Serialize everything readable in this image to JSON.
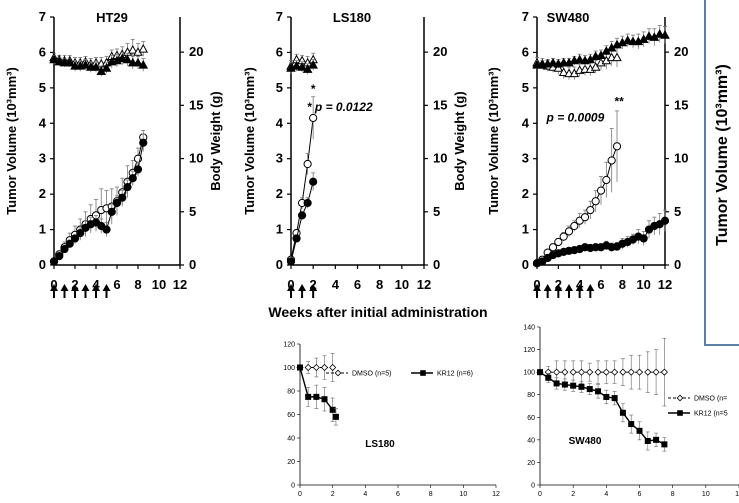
{
  "colors": {
    "axis": "#000000",
    "frame": "#5b7fa6",
    "text": "#000000"
  },
  "common": {
    "shared_xlabel": "Weeks  after initial administration",
    "right_panel_ylabel": "Tumor Volume (10³mm³)"
  },
  "chart_data": [
    {
      "id": "ht29",
      "type": "line",
      "title": "HT29",
      "xlabel": "",
      "ylabel": "Tumor Volume (10³mm³)",
      "y2label": "Body Weight (g)",
      "xlim": [
        0,
        12
      ],
      "xticks": [
        0,
        2,
        4,
        6,
        8,
        10,
        12
      ],
      "ylim": [
        0,
        7
      ],
      "yticks": [
        0,
        1,
        2,
        3,
        4,
        5,
        6,
        7
      ],
      "y2lim": [
        0,
        23.3
      ],
      "y2ticks": [
        0,
        5,
        10,
        15,
        20
      ],
      "dosing_weeks": [
        0,
        1,
        2,
        3,
        4,
        5
      ],
      "series": [
        {
          "marker": "open-circle",
          "axis": "y",
          "x": [
            0,
            0.5,
            1,
            1.5,
            2,
            2.5,
            3,
            3.5,
            4,
            4.5,
            5,
            5.5,
            6,
            6.5,
            7,
            7.5,
            8,
            8.5
          ],
          "y": [
            0.1,
            0.3,
            0.5,
            0.7,
            0.85,
            1.0,
            1.15,
            1.3,
            1.4,
            1.55,
            1.6,
            1.65,
            1.8,
            2.05,
            2.35,
            2.6,
            3.0,
            3.6
          ],
          "err": [
            0.05,
            0.1,
            0.15,
            0.2,
            0.25,
            0.3,
            0.35,
            0.4,
            0.45,
            0.6,
            0.5,
            0.5,
            0.4,
            0.4,
            0.45,
            0.35,
            0.3,
            0.2
          ]
        },
        {
          "marker": "filled-circle",
          "axis": "y",
          "x": [
            0,
            0.5,
            1,
            1.5,
            2,
            2.5,
            3,
            3.5,
            4,
            4.5,
            5,
            5.5,
            6,
            6.5,
            7,
            7.5,
            8,
            8.5
          ],
          "y": [
            0.1,
            0.25,
            0.45,
            0.6,
            0.75,
            0.9,
            1.05,
            1.15,
            1.2,
            1.1,
            1.0,
            1.5,
            1.75,
            1.9,
            2.2,
            2.45,
            2.7,
            3.45
          ],
          "err": [
            0.03,
            0.05,
            0.08,
            0.1,
            0.1,
            0.15,
            0.2,
            0.2,
            0.2,
            0.2,
            0.2,
            0.2,
            0.2,
            0.2,
            0.2,
            0.2,
            0.2,
            0.25
          ]
        },
        {
          "marker": "open-triangle",
          "axis": "y2",
          "x": [
            0,
            0.5,
            1,
            1.5,
            2,
            2.5,
            3,
            3.5,
            4,
            4.5,
            5,
            5.5,
            6,
            6.5,
            7,
            7.5,
            8,
            8.5
          ],
          "y": [
            19.5,
            19.3,
            19.2,
            19.2,
            19.0,
            19.0,
            19.1,
            18.9,
            19.0,
            18.9,
            19.0,
            19.6,
            19.7,
            19.8,
            20.0,
            20.2,
            20.0,
            20.3
          ],
          "err": [
            0.4,
            0.4,
            0.5,
            0.5,
            0.5,
            0.5,
            0.5,
            0.5,
            0.5,
            0.6,
            0.6,
            0.6,
            0.6,
            0.7,
            0.8,
            1.0,
            0.8,
            0.7
          ]
        },
        {
          "marker": "filled-triangle",
          "axis": "y2",
          "x": [
            0,
            0.5,
            1,
            1.5,
            2,
            2.5,
            3,
            3.5,
            4,
            4.5,
            5,
            5.5,
            6,
            6.5,
            7,
            7.5,
            8,
            8.5
          ],
          "y": [
            19.3,
            19.1,
            19.0,
            19.0,
            18.7,
            18.7,
            18.8,
            18.6,
            18.6,
            18.2,
            18.5,
            19.1,
            19.2,
            19.4,
            19.3,
            19.0,
            19.0,
            18.8
          ],
          "err": [
            0.4,
            0.4,
            0.4,
            0.4,
            0.5,
            0.5,
            0.5,
            0.5,
            0.5,
            0.5,
            0.5,
            0.6,
            0.6,
            0.6,
            0.6,
            0.6,
            0.6,
            0.6
          ]
        }
      ],
      "annotations": []
    },
    {
      "id": "ls180",
      "type": "line",
      "title": "LS180",
      "xlabel": "",
      "ylabel": "Tumor Volume (10³mm³)",
      "y2label": "Body Weight (g)",
      "xlim": [
        0,
        12
      ],
      "xticks": [
        0,
        2,
        4,
        6,
        8,
        10,
        12
      ],
      "ylim": [
        0,
        7
      ],
      "yticks": [
        0,
        1,
        2,
        3,
        4,
        5,
        6,
        7
      ],
      "y2lim": [
        0,
        23.3
      ],
      "y2ticks": [
        0,
        5,
        10,
        15,
        20
      ],
      "dosing_weeks": [
        0,
        1,
        2
      ],
      "series": [
        {
          "marker": "open-circle",
          "axis": "y",
          "x": [
            0,
            0.5,
            1,
            1.5,
            2
          ],
          "y": [
            0.15,
            0.9,
            1.75,
            2.85,
            4.15
          ],
          "err": [
            0.05,
            0.1,
            0.15,
            0.3,
            0.6
          ]
        },
        {
          "marker": "filled-circle",
          "axis": "y",
          "x": [
            0,
            0.5,
            1,
            1.5,
            2
          ],
          "y": [
            0.1,
            0.75,
            1.4,
            1.75,
            2.35
          ],
          "err": [
            0.05,
            0.1,
            0.1,
            0.15,
            0.25
          ]
        },
        {
          "marker": "open-triangle",
          "axis": "y2",
          "x": [
            0,
            0.5,
            1,
            1.5,
            2
          ],
          "y": [
            18.7,
            19.3,
            19.2,
            19.0,
            19.3
          ],
          "err": [
            0.5,
            0.5,
            0.5,
            0.6,
            0.6
          ]
        },
        {
          "marker": "filled-triangle",
          "axis": "y2",
          "x": [
            0,
            0.5,
            1,
            1.5,
            2
          ],
          "y": [
            18.5,
            18.7,
            18.6,
            18.4,
            18.8
          ],
          "err": [
            0.5,
            0.5,
            0.5,
            0.5,
            0.5
          ]
        }
      ],
      "annotations": [
        {
          "text": "*",
          "x": 2,
          "y": 4.85
        },
        {
          "text": "* p = 0.0122",
          "x": 4.4,
          "y": 4.35
        }
      ]
    },
    {
      "id": "sw480",
      "type": "line",
      "title": "SW480",
      "xlabel": "",
      "ylabel": "Tumor Volume (10³mm³)",
      "y2label": "",
      "xlim": [
        0,
        12
      ],
      "xticks": [
        0,
        2,
        4,
        6,
        8,
        10,
        12
      ],
      "ylim": [
        0,
        7
      ],
      "yticks": [
        0,
        1,
        2,
        3,
        4,
        5,
        6,
        7
      ],
      "y2lim": [
        0,
        23.3
      ],
      "y2ticks": [
        0,
        5,
        10,
        15,
        20
      ],
      "dosing_weeks": [
        0,
        1,
        2,
        3,
        4,
        5
      ],
      "series": [
        {
          "marker": "open-circle",
          "axis": "y",
          "x": [
            0,
            0.5,
            1,
            1.5,
            2,
            2.5,
            3,
            3.5,
            4,
            4.5,
            5,
            5.5,
            6,
            6.5,
            7,
            7.5
          ],
          "y": [
            0.05,
            0.15,
            0.35,
            0.5,
            0.65,
            0.8,
            0.95,
            1.1,
            1.25,
            1.35,
            1.55,
            1.8,
            2.1,
            2.4,
            2.95,
            3.35
          ],
          "err": [
            0.02,
            0.05,
            0.07,
            0.08,
            0.1,
            0.12,
            0.15,
            0.15,
            0.2,
            0.2,
            0.25,
            0.3,
            0.4,
            0.5,
            0.9,
            1.0
          ]
        },
        {
          "marker": "filled-circle",
          "axis": "y",
          "x": [
            0,
            0.5,
            1,
            1.5,
            2,
            2.5,
            3,
            3.5,
            4,
            4.5,
            5,
            5.5,
            6,
            6.5,
            7,
            7.5,
            8,
            8.5,
            9,
            9.5,
            10,
            10.5,
            11,
            11.5,
            12
          ],
          "y": [
            0.05,
            0.1,
            0.2,
            0.28,
            0.33,
            0.37,
            0.4,
            0.42,
            0.45,
            0.5,
            0.48,
            0.5,
            0.5,
            0.55,
            0.5,
            0.52,
            0.6,
            0.65,
            0.72,
            0.8,
            0.75,
            1.0,
            1.1,
            1.15,
            1.25
          ],
          "err": [
            0.02,
            0.03,
            0.05,
            0.05,
            0.06,
            0.07,
            0.08,
            0.08,
            0.1,
            0.1,
            0.1,
            0.1,
            0.1,
            0.12,
            0.12,
            0.12,
            0.15,
            0.15,
            0.15,
            0.2,
            0.2,
            0.25,
            0.25,
            0.3,
            0.3
          ]
        },
        {
          "marker": "open-triangle",
          "axis": "y2",
          "x": [
            0,
            0.5,
            1,
            1.5,
            2,
            2.5,
            3,
            3.5,
            4,
            4.5,
            5,
            5.5,
            6,
            6.5,
            7,
            7.5
          ],
          "y": [
            19.0,
            18.9,
            18.7,
            18.6,
            18.5,
            18.1,
            18.0,
            18.0,
            18.3,
            18.4,
            18.4,
            18.6,
            19.0,
            19.2,
            19.5,
            19.5
          ],
          "err": [
            0.5,
            0.5,
            0.5,
            0.5,
            0.6,
            0.6,
            0.6,
            0.6,
            0.6,
            0.6,
            0.6,
            0.6,
            0.7,
            0.8,
            0.8,
            0.9
          ]
        },
        {
          "marker": "filled-triangle",
          "axis": "y2",
          "x": [
            0,
            0.5,
            1,
            1.5,
            2,
            2.5,
            3,
            3.5,
            4,
            4.5,
            5,
            5.5,
            6,
            6.5,
            7,
            7.5,
            8,
            8.5,
            9,
            9.5,
            10,
            10.5,
            11,
            11.5,
            12
          ],
          "y": [
            18.8,
            18.8,
            18.9,
            19.0,
            18.9,
            19.0,
            19.0,
            19.2,
            19.3,
            19.2,
            19.3,
            19.6,
            19.7,
            20.1,
            20.4,
            20.7,
            20.9,
            21.1,
            21.0,
            21.0,
            21.2,
            21.5,
            21.4,
            21.7,
            21.6
          ],
          "err": [
            0.4,
            0.4,
            0.4,
            0.4,
            0.4,
            0.4,
            0.4,
            0.4,
            0.5,
            0.5,
            0.5,
            0.5,
            0.5,
            0.5,
            0.6,
            0.6,
            0.6,
            0.6,
            0.6,
            0.7,
            0.7,
            0.7,
            0.8,
            0.8,
            0.8
          ]
        }
      ],
      "annotations": [
        {
          "text": "p = 0.0009",
          "x": 3.6,
          "y": 4.05
        },
        {
          "text": "**",
          "x": 7.7,
          "y": 4.5
        }
      ]
    },
    {
      "id": "ls180-bw",
      "type": "line",
      "title": "LS180",
      "xlim": [
        0,
        12
      ],
      "xticks": [
        0,
        2,
        4,
        6,
        8,
        10,
        12
      ],
      "ylim": [
        0,
        120
      ],
      "yticks": [
        0,
        20,
        40,
        60,
        80,
        100,
        120
      ],
      "legend_position": "top-right",
      "series": [
        {
          "name": "DMSO (n=5)",
          "marker": "open-diamond",
          "dashed": true,
          "x": [
            0,
            0.5,
            1,
            1.5,
            2
          ],
          "y": [
            100,
            100,
            100,
            100,
            100
          ],
          "err": [
            0,
            5,
            8,
            10,
            12
          ]
        },
        {
          "name": "KR12 (n=6)",
          "marker": "filled-square",
          "dashed": false,
          "x": [
            0,
            0.5,
            1,
            1.5,
            2
          ],
          "y": [
            100,
            75,
            75,
            73,
            64
          ],
          "err": [
            0,
            8,
            10,
            10,
            10
          ]
        },
        {
          "name": "",
          "marker": "filled-square",
          "dashed": false,
          "x": [
            2.2
          ],
          "y": [
            58
          ],
          "err": [
            7
          ]
        }
      ]
    },
    {
      "id": "sw480-bw",
      "type": "line",
      "title": "SW480",
      "xlim": [
        0,
        12
      ],
      "xticks": [
        0,
        2,
        4,
        6,
        8,
        10,
        12
      ],
      "ylim": [
        0,
        140
      ],
      "yticks": [
        0,
        20,
        40,
        60,
        80,
        100,
        120,
        140
      ],
      "legend_position": "right",
      "series": [
        {
          "name": "DMSO (n=",
          "marker": "open-diamond",
          "dashed": true,
          "x": [
            0,
            0.5,
            1,
            1.5,
            2,
            2.5,
            3,
            3.5,
            4,
            4.5,
            5,
            5.5,
            6,
            6.5,
            7,
            7.5
          ],
          "y": [
            100,
            100,
            100,
            100,
            100,
            100,
            100,
            100,
            100,
            100,
            100,
            100,
            100,
            100,
            100,
            100
          ],
          "err": [
            0,
            5,
            10,
            10,
            10,
            10,
            8,
            10,
            10,
            10,
            12,
            15,
            15,
            18,
            20,
            30
          ]
        },
        {
          "name": "KR12 (n=5",
          "marker": "filled-square",
          "dashed": false,
          "x": [
            0,
            0.5,
            1,
            1.5,
            2,
            2.5,
            3,
            3.5,
            4,
            4.5,
            5,
            5.5,
            6,
            6.5,
            7,
            7.5
          ],
          "y": [
            100,
            95,
            90,
            89,
            88,
            87,
            85,
            83,
            78,
            77,
            64,
            54,
            48,
            39,
            40,
            36
          ],
          "err": [
            0,
            4,
            5,
            5,
            5,
            5,
            5,
            6,
            6,
            6,
            8,
            8,
            8,
            8,
            6,
            6
          ]
        }
      ]
    }
  ]
}
